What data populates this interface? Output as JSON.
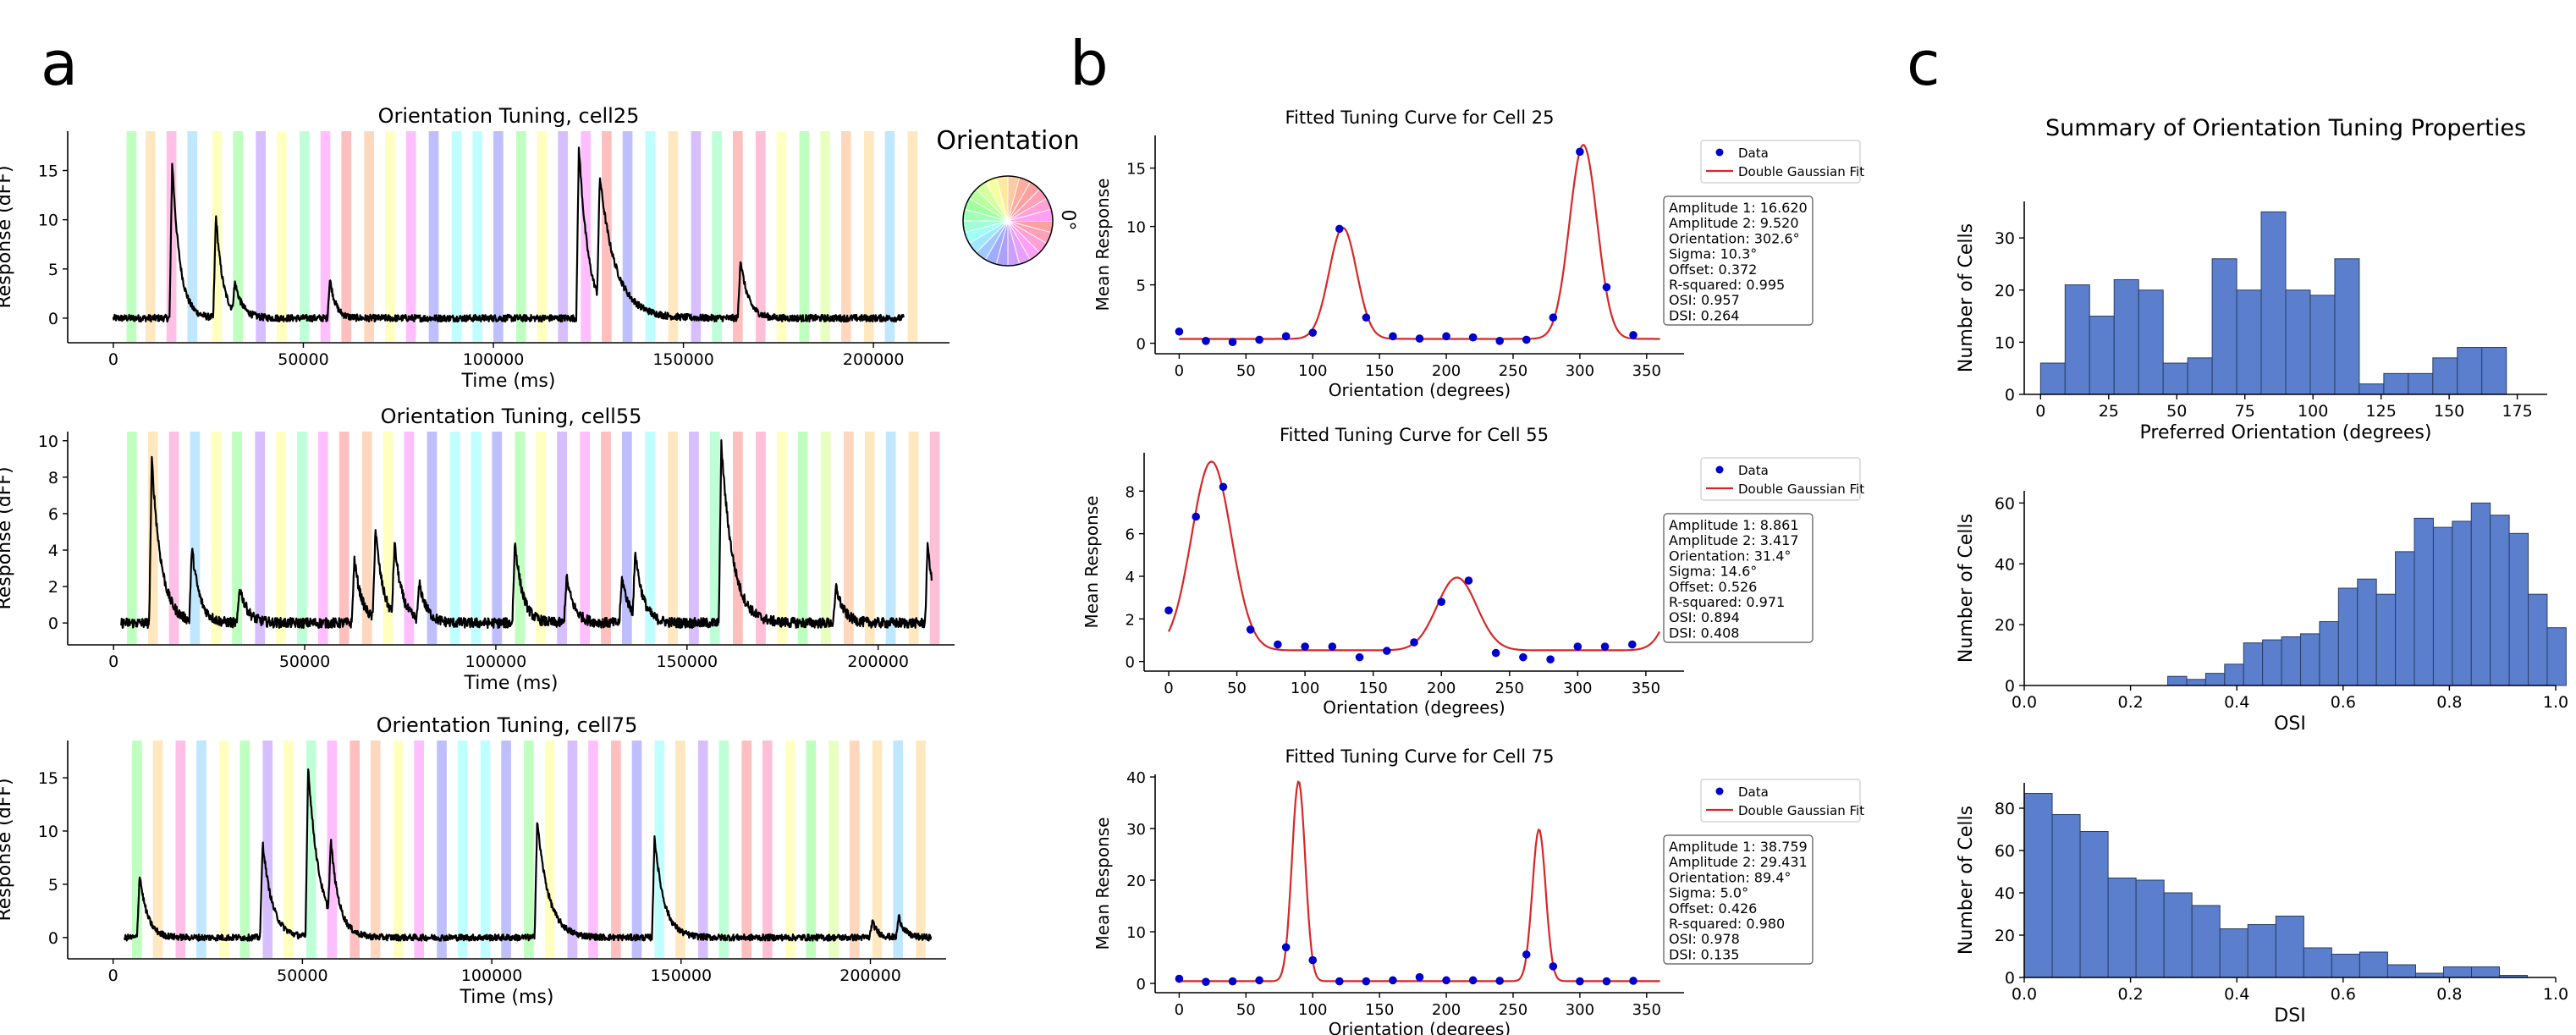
{
  "panel_labels": [
    "a",
    "b",
    "c"
  ],
  "colors": {
    "trace": "#000000",
    "fit_line": "#d62728",
    "data_points": "#0000cc",
    "histogram_fill": "#5b7fcc",
    "histogram_edge": "#2a3d66",
    "orientation_palette": [
      "#80ff80",
      "#ffd080",
      "#ff80d0",
      "#80d0ff",
      "#ffff80",
      "#80ff80",
      "#b080ff",
      "#ffff80",
      "#80ffb0",
      "#ff80ff",
      "#ff8080",
      "#ffb080",
      "#ffff80",
      "#ff80ff",
      "#8080ff",
      "#80ffff",
      "#80ffff",
      "#8080ff",
      "#80ff80",
      "#ffff80",
      "#b080ff",
      "#ff80ff",
      "#ff8080",
      "#8080ff",
      "#80ffff",
      "#ffd080",
      "#b080ff",
      "#80ffb0",
      "#ff8080",
      "#ff80b0",
      "#ffff80",
      "#80ff80",
      "#d0ff80",
      "#ffb080",
      "#ffd080",
      "#80d0ff",
      "#ffd080",
      "#ff80b0"
    ]
  },
  "orientation_legend": {
    "title": "Orientation",
    "label": "0°"
  },
  "chart_data": [
    {
      "id": "trace25",
      "type": "line",
      "title": "Orientation Tuning, cell25",
      "xlabel": "Time (ms)",
      "ylabel": "Response (dFF)",
      "xlim": [
        -12000,
        220000
      ],
      "ylim": [
        -2.5,
        19
      ],
      "xticks": [
        0,
        50000,
        100000,
        150000,
        200000
      ],
      "xtick_labels": [
        "0",
        "50000",
        "100000",
        "150000",
        "200000"
      ],
      "yticks": [
        0,
        5,
        10,
        15
      ],
      "ytick_labels": [
        "0",
        "5",
        "10",
        "15"
      ],
      "x_range": [
        0,
        208000
      ],
      "noise": 0.35,
      "baseline": 0,
      "peaks": [
        [
          15500,
          16,
          2000
        ],
        [
          27000,
          10.5,
          1800
        ],
        [
          32000,
          3,
          2000
        ],
        [
          57000,
          4,
          1500
        ],
        [
          122500,
          17.5,
          2500
        ],
        [
          128000,
          12.5,
          4500
        ],
        [
          165000,
          6,
          2000
        ]
      ],
      "stimulus_onsets": [
        3500,
        8500,
        14000,
        19500,
        26000,
        31500,
        37500,
        43000,
        49000,
        54500,
        60000,
        66000,
        71500,
        77000,
        83000,
        89000,
        94500,
        100000,
        106000,
        111500,
        117000,
        123000,
        128500,
        134000,
        140000,
        146000,
        152000,
        157500,
        163000,
        169000,
        174500,
        180500,
        186000,
        191500,
        197500,
        203000,
        209000
      ]
    },
    {
      "id": "trace55",
      "type": "line",
      "title": "Orientation Tuning, cell55",
      "xlabel": "Time (ms)",
      "ylabel": "Response (dFF)",
      "xlim": [
        -12000,
        220000
      ],
      "ylim": [
        -1.2,
        10.5
      ],
      "xticks": [
        0,
        50000,
        100000,
        150000,
        200000
      ],
      "xtick_labels": [
        "0",
        "50000",
        "100000",
        "150000",
        "200000"
      ],
      "yticks": [
        0,
        2,
        4,
        6,
        8,
        10
      ],
      "ytick_labels": [
        "0",
        "2",
        "4",
        "6",
        "8",
        "10"
      ],
      "x_range": [
        2000,
        214000
      ],
      "noise": 0.28,
      "baseline": 0,
      "peaks": [
        [
          10000,
          9,
          2500
        ],
        [
          20500,
          4,
          2000
        ],
        [
          33000,
          2,
          2000
        ],
        [
          63000,
          3.5,
          2000
        ],
        [
          68500,
          5,
          2000
        ],
        [
          73500,
          4,
          2000
        ],
        [
          80000,
          2,
          2000
        ],
        [
          105000,
          4.5,
          2000
        ],
        [
          118500,
          2.5,
          2000
        ],
        [
          133000,
          2.5,
          2000
        ],
        [
          136500,
          3.5,
          2000
        ],
        [
          159000,
          9.8,
          3000
        ],
        [
          189000,
          2,
          2000
        ],
        [
          213000,
          4.5,
          1500
        ]
      ],
      "stimulus_onsets": [
        3500,
        9000,
        14500,
        20000,
        25500,
        31000,
        37000,
        42500,
        48000,
        53500,
        59000,
        65000,
        70500,
        76000,
        82000,
        88000,
        93500,
        99000,
        105000,
        110500,
        116000,
        122000,
        127500,
        133000,
        139000,
        145000,
        150500,
        156000,
        162000,
        168000,
        173500,
        179000,
        185000,
        191000,
        196500,
        202000,
        208000,
        213500
      ]
    },
    {
      "id": "trace75",
      "type": "line",
      "title": "Orientation Tuning, cell75",
      "xlabel": "Time (ms)",
      "ylabel": "Response (dFF)",
      "xlim": [
        -12000,
        220000
      ],
      "ylim": [
        -2.0,
        18.5
      ],
      "xticks": [
        0,
        50000,
        100000,
        150000,
        200000
      ],
      "xtick_labels": [
        "0",
        "50000",
        "100000",
        "150000",
        "200000"
      ],
      "yticks": [
        0,
        5,
        10,
        15
      ],
      "ytick_labels": [
        "0",
        "5",
        "10",
        "15"
      ],
      "x_range": [
        3000,
        216000
      ],
      "noise": 0.3,
      "baseline": 0,
      "peaks": [
        [
          7000,
          6,
          2000
        ],
        [
          39500,
          9,
          2500
        ],
        [
          51500,
          16,
          3000
        ],
        [
          57500,
          7,
          2000
        ],
        [
          112000,
          11,
          3000
        ],
        [
          143000,
          9.5,
          2500
        ],
        [
          200500,
          1.5,
          1500
        ],
        [
          207500,
          2,
          1500
        ]
      ],
      "stimulus_onsets": [
        5000,
        10500,
        16500,
        22000,
        28000,
        33500,
        39500,
        45000,
        51000,
        56500,
        62500,
        68000,
        74000,
        79500,
        85500,
        91000,
        97000,
        102500,
        108500,
        114000,
        120000,
        125500,
        131500,
        137000,
        143000,
        148500,
        154500,
        160000,
        166000,
        171500,
        177500,
        183000,
        189000,
        194500,
        200500,
        206000,
        212000
      ]
    },
    {
      "id": "fit25",
      "type": "scatter",
      "title": "Fitted Tuning Curve for Cell 25",
      "xlabel": "Orientation (degrees)",
      "ylabel": "Mean Response",
      "xlim": [
        -18,
        378
      ],
      "ylim": [
        -0.9,
        17.8
      ],
      "xticks": [
        0,
        50,
        100,
        150,
        200,
        250,
        300,
        350
      ],
      "yticks": [
        0,
        5,
        10,
        15
      ],
      "ytick_labels": [
        "0",
        "5",
        "10",
        "15"
      ],
      "legend": [
        "Data",
        "Double Gaussian Fit"
      ],
      "x": [
        0,
        20,
        40,
        60,
        80,
        100,
        120,
        140,
        160,
        180,
        200,
        220,
        240,
        260,
        280,
        300,
        320,
        340
      ],
      "y": [
        1.0,
        0.2,
        0.1,
        0.3,
        0.6,
        0.9,
        9.8,
        2.2,
        0.6,
        0.4,
        0.6,
        0.5,
        0.2,
        0.3,
        2.2,
        16.4,
        4.8,
        0.7
      ],
      "fit": {
        "amp1": 16.62,
        "amp2": 9.52,
        "orientation": 302.6,
        "sigma": 10.3,
        "offset": 0.372,
        "x_range": [
          0,
          360
        ]
      },
      "stats": [
        "Amplitude 1: 16.620",
        "Amplitude 2: 9.520",
        "Orientation: 302.6°",
        "Sigma: 10.3°",
        "Offset: 0.372",
        "R-squared: 0.995",
        "OSI: 0.957",
        "DSI: 0.264"
      ]
    },
    {
      "id": "fit55",
      "type": "scatter",
      "title": "Fitted Tuning Curve for Cell 55",
      "xlabel": "Orientation (degrees)",
      "ylabel": "Mean Response",
      "xlim": [
        -18,
        378
      ],
      "ylim": [
        -0.45,
        9.8
      ],
      "xticks": [
        0,
        50,
        100,
        150,
        200,
        250,
        300,
        350
      ],
      "yticks": [
        0,
        2,
        4,
        6,
        8
      ],
      "ytick_labels": [
        "0",
        "2",
        "4",
        "6",
        "8"
      ],
      "legend": [
        "Data",
        "Double Gaussian Fit"
      ],
      "x": [
        0,
        20,
        40,
        60,
        80,
        100,
        120,
        140,
        160,
        180,
        200,
        220,
        240,
        260,
        280,
        300,
        320,
        340
      ],
      "y": [
        2.4,
        6.8,
        8.2,
        1.5,
        0.8,
        0.7,
        0.7,
        0.2,
        0.5,
        0.9,
        2.8,
        3.8,
        0.4,
        0.2,
        0.1,
        0.7,
        0.7,
        0.8
      ],
      "fit": {
        "amp1": 8.861,
        "amp2": 3.417,
        "orientation": 31.4,
        "sigma": 14.6,
        "offset": 0.526,
        "x_range": [
          0,
          360
        ]
      },
      "stats": [
        "Amplitude 1: 8.861",
        "Amplitude 2: 3.417",
        "Orientation: 31.4°",
        "Sigma: 14.6°",
        "Offset: 0.526",
        "R-squared: 0.971",
        "OSI: 0.894",
        "DSI: 0.408"
      ]
    },
    {
      "id": "fit75",
      "type": "scatter",
      "title": "Fitted Tuning Curve for Cell 75",
      "xlabel": "Orientation (degrees)",
      "ylabel": "Mean Response",
      "xlim": [
        -18,
        378
      ],
      "ylim": [
        -1.8,
        40.5
      ],
      "xticks": [
        0,
        50,
        100,
        150,
        200,
        250,
        300,
        350
      ],
      "yticks": [
        0,
        10,
        20,
        30,
        40
      ],
      "ytick_labels": [
        "0",
        "10",
        "20",
        "30",
        "40"
      ],
      "legend": [
        "Data",
        "Double Gaussian Fit"
      ],
      "x": [
        0,
        20,
        40,
        60,
        80,
        100,
        120,
        140,
        160,
        180,
        200,
        220,
        240,
        260,
        280,
        300,
        320,
        340
      ],
      "y": [
        0.9,
        0.3,
        0.4,
        0.6,
        7.0,
        4.5,
        0.4,
        0.4,
        0.6,
        1.2,
        0.6,
        0.6,
        0.5,
        5.6,
        3.3,
        0.4,
        0.4,
        0.5
      ],
      "fit": {
        "amp1": 38.759,
        "amp2": 29.431,
        "orientation": 89.4,
        "sigma": 5.0,
        "offset": 0.426,
        "x_range": [
          0,
          360
        ]
      },
      "stats": [
        "Amplitude 1: 38.759",
        "Amplitude 2: 29.431",
        "Orientation: 89.4°",
        "Sigma: 5.0°",
        "Offset: 0.426",
        "R-squared: 0.980",
        "OSI: 0.978",
        "DSI: 0.135"
      ]
    },
    {
      "id": "hist_pref",
      "type": "bar",
      "title": "Summary of Orientation Tuning Properties",
      "xlabel": "Preferred Orientation (degrees)",
      "ylabel": "Number of Cells",
      "xlim": [
        -6,
        186
      ],
      "ylim": [
        0,
        37
      ],
      "xticks": [
        0,
        25,
        50,
        75,
        100,
        125,
        150,
        175
      ],
      "yticks": [
        0,
        10,
        20,
        30
      ],
      "ytick_labels": [
        "0",
        "10",
        "20",
        "30"
      ],
      "bin_start": 0,
      "bin_width": 9,
      "values": [
        6,
        21,
        15,
        22,
        20,
        6,
        7,
        26,
        20,
        35,
        20,
        19,
        26,
        2,
        4,
        4,
        7,
        9,
        9
      ]
    },
    {
      "id": "hist_osi",
      "type": "bar",
      "title": "",
      "xlabel": "OSI",
      "ylabel": "Number of Cells",
      "xlim": [
        0,
        1
      ],
      "ylim": [
        0,
        64
      ],
      "xticks": [
        0.0,
        0.2,
        0.4,
        0.6,
        0.8,
        1.0
      ],
      "xtick_labels": [
        "0.0",
        "0.2",
        "0.4",
        "0.6",
        "0.8",
        "1.0"
      ],
      "yticks": [
        0,
        20,
        40,
        60
      ],
      "ytick_labels": [
        "0",
        "20",
        "40",
        "60"
      ],
      "bin_start": 0.27,
      "bin_width": 0.0357,
      "values": [
        3,
        2,
        4,
        7,
        14,
        15,
        16,
        17,
        21,
        32,
        35,
        30,
        44,
        55,
        52,
        54,
        60,
        56,
        50,
        30,
        19
      ]
    },
    {
      "id": "hist_dsi",
      "type": "bar",
      "title": "",
      "xlabel": "DSI",
      "ylabel": "Number of Cells",
      "xlim": [
        0,
        1
      ],
      "ylim": [
        0,
        92
      ],
      "xticks": [
        0.0,
        0.2,
        0.4,
        0.6,
        0.8,
        1.0
      ],
      "xtick_labels": [
        "0.0",
        "0.2",
        "0.4",
        "0.6",
        "0.8",
        "1.0"
      ],
      "yticks": [
        0,
        20,
        40,
        60,
        80
      ],
      "ytick_labels": [
        "0",
        "20",
        "40",
        "60",
        "80"
      ],
      "bin_start": 0.0,
      "bin_width": 0.0526,
      "values": [
        87,
        77,
        69,
        47,
        46,
        40,
        34,
        23,
        25,
        29,
        14,
        11,
        12,
        6,
        2,
        5,
        5,
        1
      ]
    }
  ]
}
